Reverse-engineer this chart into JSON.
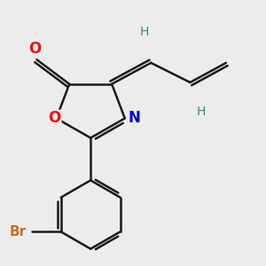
{
  "bg_color": "#ececec",
  "bond_color": "#1a1a1a",
  "bond_width": 1.8,
  "atom_colors": {
    "O": "#ff0000",
    "N": "#0000cc",
    "Br": "#c87020",
    "H": "#2e8b8b",
    "C": "#1a1a1a"
  },
  "font_size_O": 12,
  "font_size_N": 12,
  "font_size_Br": 11,
  "font_size_H": 10
}
